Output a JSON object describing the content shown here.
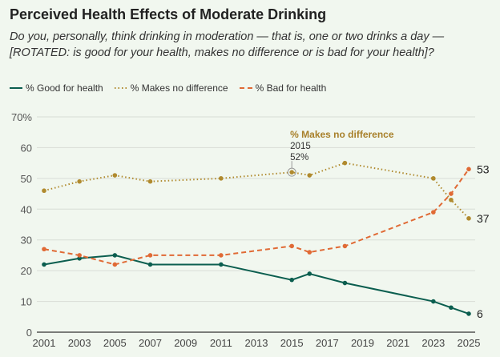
{
  "chart_data": {
    "type": "line",
    "title": "Perceived Health Effects of Moderate Drinking",
    "subtitle": "Do you, personally, think drinking in moderation — that is, one or two drinks a day — [ROTATED: is good for your health, makes no difference or is bad for your health]?",
    "x": [
      2001,
      2003,
      2005,
      2007,
      2011,
      2015,
      2016,
      2018,
      2023,
      2024,
      2025
    ],
    "xticks": [
      "2001",
      "2003",
      "2005",
      "2007",
      "2009",
      "2011",
      "2013",
      "2015",
      "2017",
      "2019",
      "2021",
      "2023",
      "2025"
    ],
    "yticks": [
      "0",
      "10",
      "20",
      "30",
      "40",
      "50",
      "60",
      "70%"
    ],
    "ylim": [
      0,
      70
    ],
    "series": [
      {
        "name": "% Good for health",
        "color": "#0b5e4f",
        "dash": "solid",
        "values": [
          22,
          24,
          25,
          22,
          22,
          17,
          19,
          16,
          10,
          8,
          6
        ],
        "end_label": "6"
      },
      {
        "name": "% Makes no difference",
        "color": "#b08a2e",
        "dash": "dotted",
        "values": [
          46,
          49,
          51,
          49,
          50,
          52,
          51,
          55,
          50,
          43,
          37
        ],
        "end_label": "37"
      },
      {
        "name": "% Bad for health",
        "color": "#e06a35",
        "dash": "dashed",
        "values": [
          27,
          25,
          22,
          25,
          25,
          28,
          26,
          28,
          39,
          45,
          53
        ],
        "end_label": "53"
      }
    ],
    "annotation": {
      "title": "% Makes no difference",
      "year": "2015",
      "value": "52%"
    },
    "legend": "top-left"
  }
}
